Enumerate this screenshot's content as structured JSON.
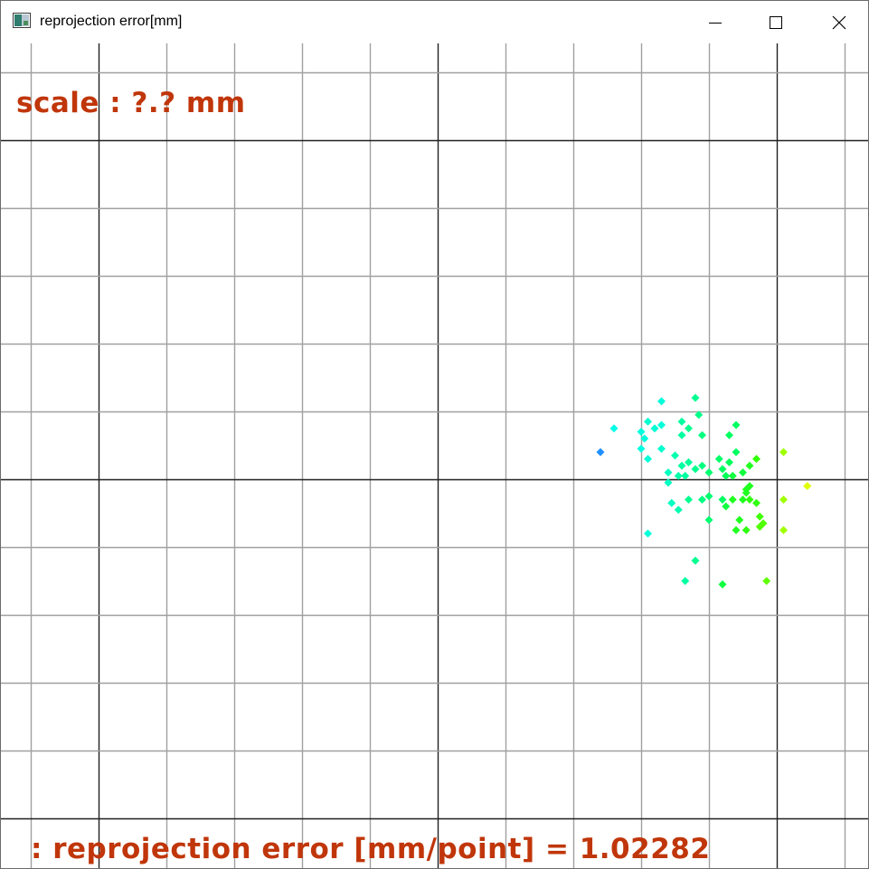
{
  "window": {
    "title": "reprojection error[mm]",
    "icon": "opencv-window-icon"
  },
  "titlebar_buttons": {
    "minimize_icon": "minimize-icon",
    "maximize_icon": "maximize-icon",
    "close_icon": "close-icon"
  },
  "overlay": {
    "scale_label": "scale : ?.? mm",
    "error_label": ": reprojection error [mm/point] = 1.02282",
    "text_color": "#c0360a"
  },
  "grid": {
    "minor_color": "#a0a0a0",
    "major_color": "#202020"
  },
  "chart_data": {
    "type": "scatter",
    "title": "",
    "xlabel": "",
    "ylabel": "",
    "points": [
      {
        "x": 2.4,
        "y": 0.4,
        "color": "#1e90ff"
      },
      {
        "x": 3.3,
        "y": 1.15,
        "color": "#00ffd8"
      },
      {
        "x": 3.1,
        "y": 0.85,
        "color": "#00ffd0"
      },
      {
        "x": 3.2,
        "y": 0.75,
        "color": "#00ffd4"
      },
      {
        "x": 3.3,
        "y": 0.8,
        "color": "#00ffd8"
      },
      {
        "x": 3.8,
        "y": 1.2,
        "color": "#00ff90"
      },
      {
        "x": 3.7,
        "y": 0.75,
        "color": "#00ff90"
      },
      {
        "x": 4.4,
        "y": 0.8,
        "color": "#00ff60"
      },
      {
        "x": 4.3,
        "y": 0.65,
        "color": "#00ff60"
      },
      {
        "x": 2.6,
        "y": 0.75,
        "color": "#00ffe8"
      },
      {
        "x": 3.0,
        "y": 0.45,
        "color": "#00ffe0"
      },
      {
        "x": 3.05,
        "y": 0.6,
        "color": "#00ffdc"
      },
      {
        "x": 3.6,
        "y": 0.65,
        "color": "#00ffa0"
      },
      {
        "x": 3.9,
        "y": 0.65,
        "color": "#00ff80"
      },
      {
        "x": 3.85,
        "y": 0.95,
        "color": "#00ff88"
      },
      {
        "x": 3.6,
        "y": 0.85,
        "color": "#00ffa0"
      },
      {
        "x": 3.3,
        "y": 0.45,
        "color": "#00ffd0"
      },
      {
        "x": 3.1,
        "y": 0.3,
        "color": "#00ffd8"
      },
      {
        "x": 3.0,
        "y": 0.7,
        "color": "#00ffdc"
      },
      {
        "x": 4.4,
        "y": 0.4,
        "color": "#00ff60"
      },
      {
        "x": 4.7,
        "y": 0.3,
        "color": "#30ff00"
      },
      {
        "x": 5.1,
        "y": 0.4,
        "color": "#a0ff00"
      },
      {
        "x": 3.5,
        "y": 0.35,
        "color": "#00ffb0"
      },
      {
        "x": 3.4,
        "y": 0.1,
        "color": "#00ffc0"
      },
      {
        "x": 3.6,
        "y": 0.2,
        "color": "#00ffa0"
      },
      {
        "x": 3.7,
        "y": 0.25,
        "color": "#00ff98"
      },
      {
        "x": 3.8,
        "y": 0.15,
        "color": "#00ff90"
      },
      {
        "x": 3.65,
        "y": 0.05,
        "color": "#00ffa0"
      },
      {
        "x": 3.55,
        "y": 0.05,
        "color": "#00ffa8"
      },
      {
        "x": 3.9,
        "y": 0.2,
        "color": "#00ff80"
      },
      {
        "x": 4.0,
        "y": 0.1,
        "color": "#00ff70"
      },
      {
        "x": 4.15,
        "y": 0.3,
        "color": "#00ff68"
      },
      {
        "x": 4.2,
        "y": 0.15,
        "color": "#00ff60"
      },
      {
        "x": 4.3,
        "y": 0.25,
        "color": "#00ff58"
      },
      {
        "x": 4.25,
        "y": 0.05,
        "color": "#00ff58"
      },
      {
        "x": 4.35,
        "y": 0.05,
        "color": "#10ff40"
      },
      {
        "x": 4.5,
        "y": 0.1,
        "color": "#10ff40"
      },
      {
        "x": 4.6,
        "y": 0.2,
        "color": "#20ff20"
      },
      {
        "x": 3.4,
        "y": -0.05,
        "color": "#00ffc0"
      },
      {
        "x": 3.7,
        "y": -0.3,
        "color": "#00ff90"
      },
      {
        "x": 3.9,
        "y": -0.3,
        "color": "#00ff80"
      },
      {
        "x": 4.0,
        "y": -0.25,
        "color": "#00ff70"
      },
      {
        "x": 4.2,
        "y": -0.3,
        "color": "#00ff60"
      },
      {
        "x": 4.35,
        "y": -0.3,
        "color": "#20ff20"
      },
      {
        "x": 4.5,
        "y": -0.3,
        "color": "#20ff20"
      },
      {
        "x": 4.6,
        "y": -0.3,
        "color": "#30ff10"
      },
      {
        "x": 4.7,
        "y": -0.35,
        "color": "#30ff10"
      },
      {
        "x": 4.55,
        "y": -0.2,
        "color": "#20ff20"
      },
      {
        "x": 4.6,
        "y": -0.1,
        "color": "#20ff20"
      },
      {
        "x": 4.55,
        "y": -0.15,
        "color": "#20ff20"
      },
      {
        "x": 4.25,
        "y": -0.4,
        "color": "#10ff40"
      },
      {
        "x": 4.0,
        "y": -0.6,
        "color": "#00ff70"
      },
      {
        "x": 3.45,
        "y": -0.35,
        "color": "#00ffc0"
      },
      {
        "x": 3.55,
        "y": -0.45,
        "color": "#00ffb0"
      },
      {
        "x": 4.75,
        "y": -0.55,
        "color": "#40ff00"
      },
      {
        "x": 4.8,
        "y": -0.65,
        "color": "#50ff00"
      },
      {
        "x": 4.75,
        "y": -0.7,
        "color": "#50ff00"
      },
      {
        "x": 4.45,
        "y": -0.6,
        "color": "#20ff20"
      },
      {
        "x": 4.4,
        "y": -0.75,
        "color": "#20ff20"
      },
      {
        "x": 4.55,
        "y": -0.75,
        "color": "#30ff10"
      },
      {
        "x": 5.1,
        "y": -0.3,
        "color": "#a0ff00"
      },
      {
        "x": 5.1,
        "y": -0.75,
        "color": "#a0ff00"
      },
      {
        "x": 5.45,
        "y": -0.1,
        "color": "#e0ff00"
      },
      {
        "x": 3.8,
        "y": -1.2,
        "color": "#00ff90"
      },
      {
        "x": 3.65,
        "y": -1.5,
        "color": "#00ffa0"
      },
      {
        "x": 4.2,
        "y": -1.55,
        "color": "#10ff40"
      },
      {
        "x": 4.85,
        "y": -1.5,
        "color": "#60ff00"
      },
      {
        "x": 3.1,
        "y": -0.8,
        "color": "#00ffd8"
      }
    ]
  }
}
